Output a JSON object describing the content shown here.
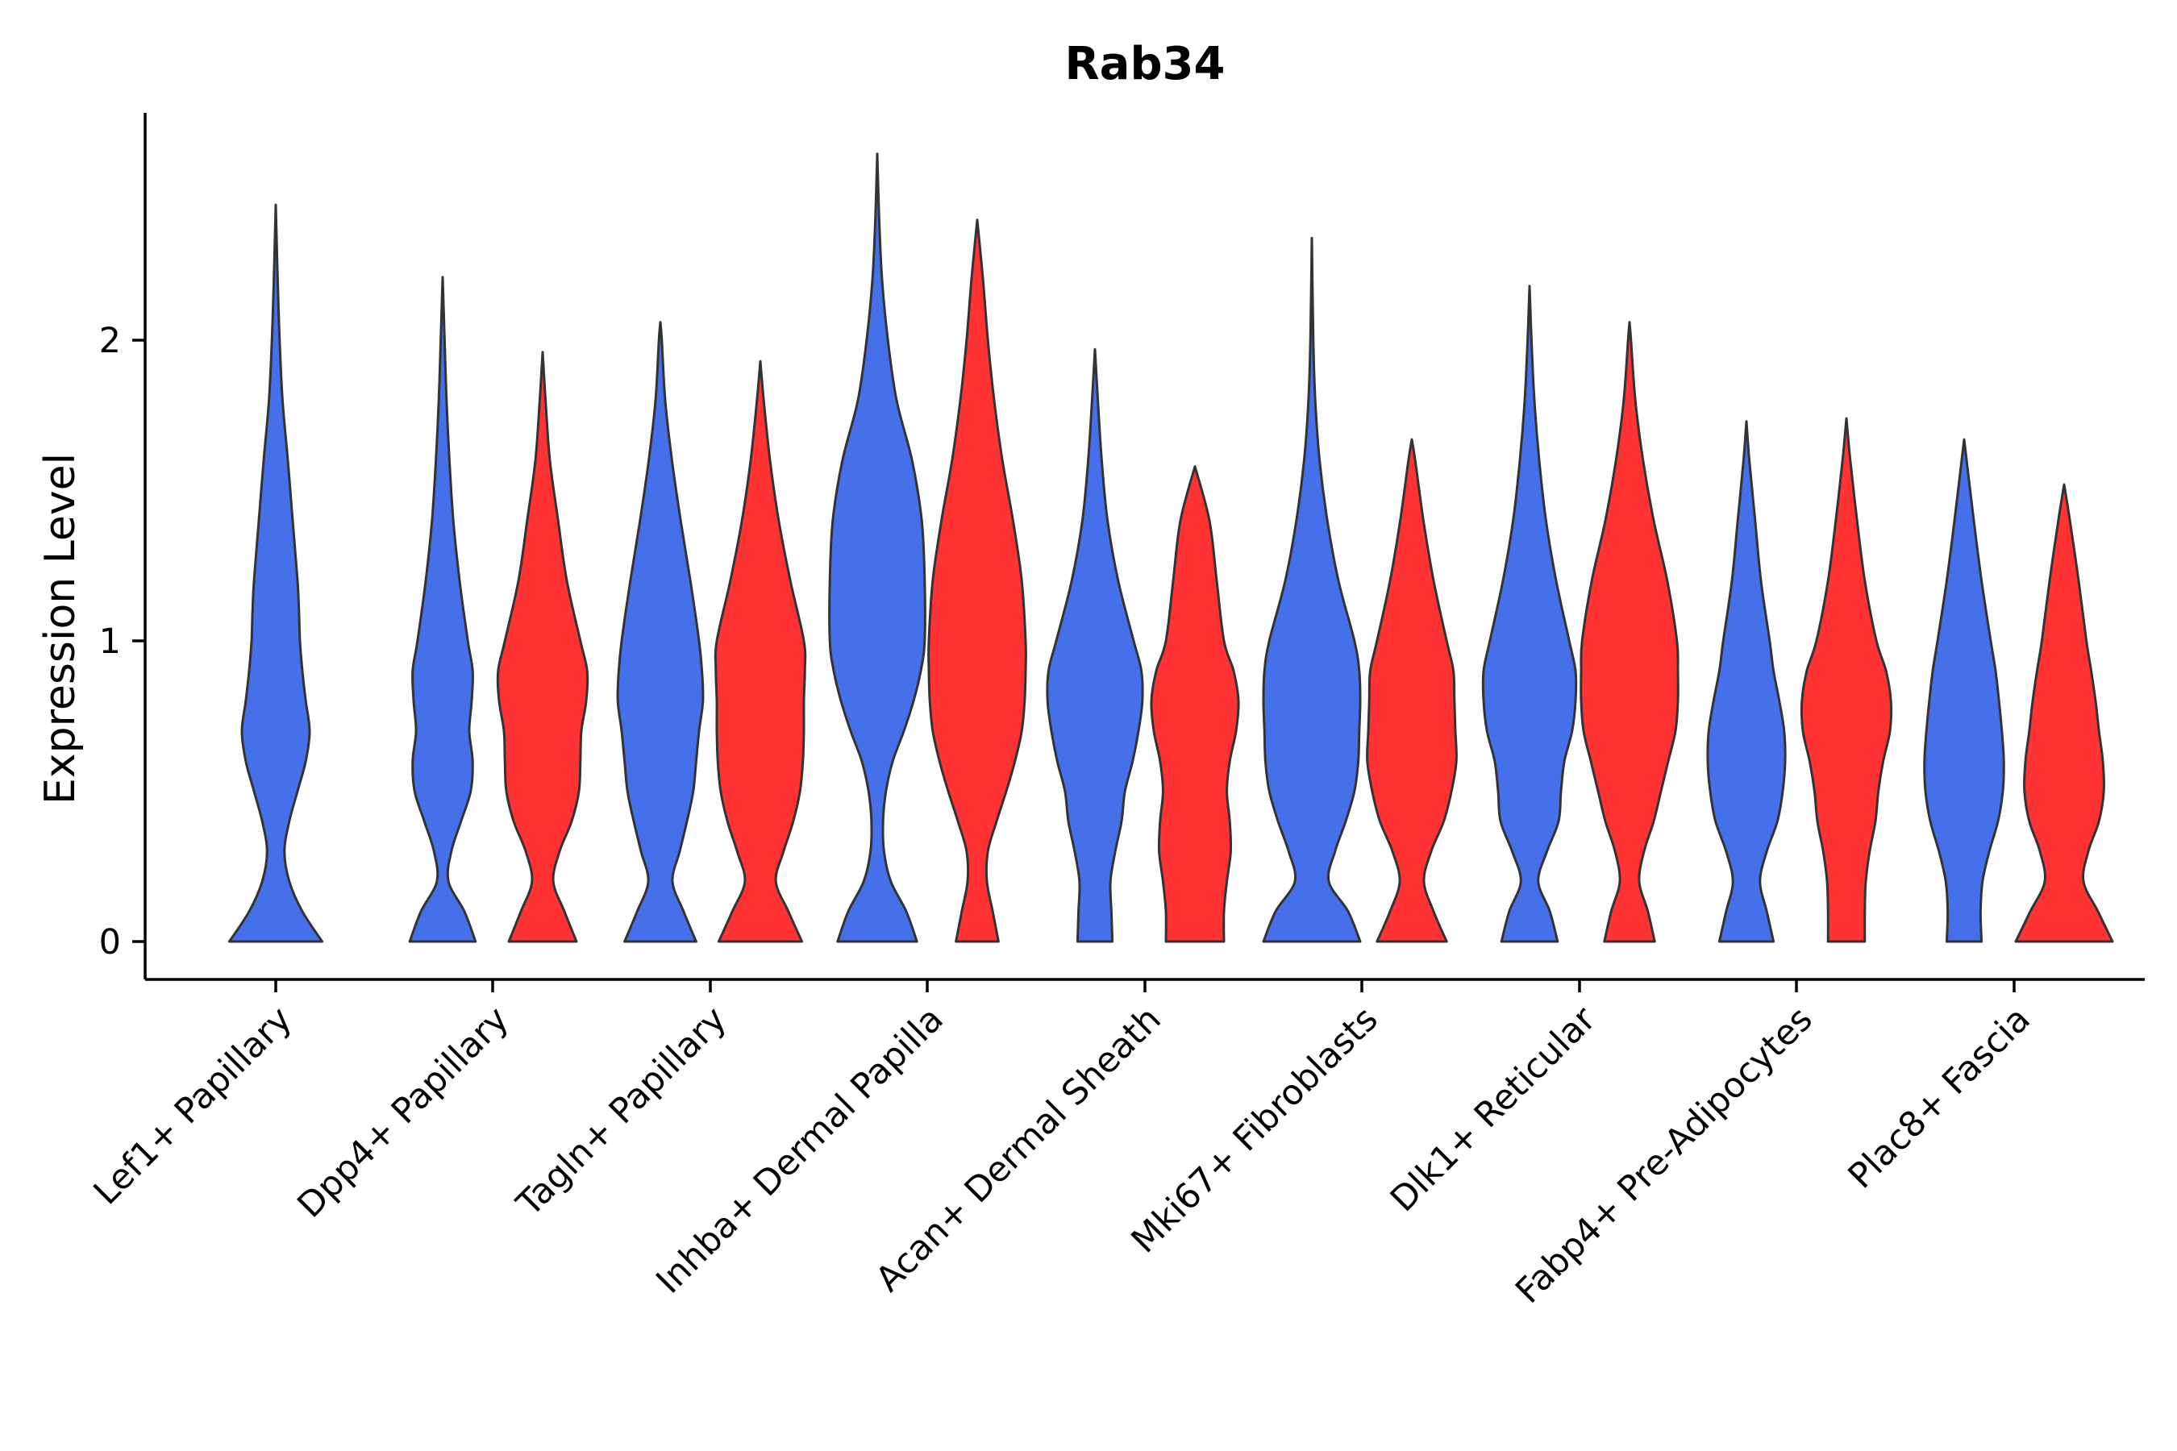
{
  "chart_data": {
    "type": "violin",
    "title": "Rab34",
    "xlabel": "",
    "ylabel": "Expression Level",
    "ylim": [
      -0.13,
      2.75
    ],
    "yticks": [
      0,
      1,
      2
    ],
    "grid": false,
    "legend": "none",
    "colors": {
      "group_a": "#4570EA",
      "group_b": "#FF3333",
      "outline": "#333333"
    },
    "categories": [
      "Lef1+ Papillary",
      "Dpp4+ Papillary",
      "Tagln+ Papillary",
      "Inhba+ Dermal Papilla",
      "Acan+ Dermal Sheath",
      "Mki67+ Fibroblasts",
      "Dlk1+ Reticular",
      "Fabp4+ Pre-Adipocytes",
      "Plac8+ Fascia"
    ],
    "violins": [
      {
        "category": "Lef1+ Papillary",
        "group": "a",
        "max": 2.45,
        "profile": [
          [
            0,
            0.96
          ],
          [
            0.1,
            0.55
          ],
          [
            0.2,
            0.28
          ],
          [
            0.3,
            0.18
          ],
          [
            0.4,
            0.28
          ],
          [
            0.5,
            0.45
          ],
          [
            0.6,
            0.62
          ],
          [
            0.7,
            0.7
          ],
          [
            0.8,
            0.62
          ],
          [
            0.9,
            0.55
          ],
          [
            1.0,
            0.5
          ],
          [
            1.1,
            0.48
          ],
          [
            1.2,
            0.45
          ],
          [
            1.4,
            0.35
          ],
          [
            1.6,
            0.25
          ],
          [
            1.8,
            0.14
          ],
          [
            2.0,
            0.08
          ],
          [
            2.2,
            0.04
          ],
          [
            2.45,
            0.0
          ]
        ]
      },
      {
        "category": "Dpp4+ Papillary",
        "group": "a",
        "max": 2.21,
        "profile": [
          [
            0,
            0.68
          ],
          [
            0.1,
            0.45
          ],
          [
            0.2,
            0.12
          ],
          [
            0.3,
            0.18
          ],
          [
            0.4,
            0.38
          ],
          [
            0.5,
            0.58
          ],
          [
            0.6,
            0.62
          ],
          [
            0.7,
            0.55
          ],
          [
            0.8,
            0.6
          ],
          [
            0.9,
            0.62
          ],
          [
            1.0,
            0.52
          ],
          [
            1.2,
            0.35
          ],
          [
            1.4,
            0.22
          ],
          [
            1.6,
            0.14
          ],
          [
            1.8,
            0.08
          ],
          [
            2.0,
            0.04
          ],
          [
            2.21,
            0.0
          ]
        ]
      },
      {
        "category": "Dpp4+ Papillary",
        "group": "b",
        "max": 1.96,
        "profile": [
          [
            0,
            0.7
          ],
          [
            0.1,
            0.45
          ],
          [
            0.2,
            0.22
          ],
          [
            0.3,
            0.35
          ],
          [
            0.4,
            0.6
          ],
          [
            0.5,
            0.75
          ],
          [
            0.6,
            0.78
          ],
          [
            0.7,
            0.8
          ],
          [
            0.8,
            0.9
          ],
          [
            0.9,
            0.92
          ],
          [
            1.0,
            0.78
          ],
          [
            1.2,
            0.5
          ],
          [
            1.4,
            0.32
          ],
          [
            1.6,
            0.15
          ],
          [
            1.8,
            0.06
          ],
          [
            1.96,
            0.0
          ]
        ]
      },
      {
        "category": "Tagln+ Papillary",
        "group": "a",
        "max": 2.06,
        "profile": [
          [
            0,
            0.74
          ],
          [
            0.1,
            0.48
          ],
          [
            0.2,
            0.25
          ],
          [
            0.3,
            0.4
          ],
          [
            0.4,
            0.55
          ],
          [
            0.5,
            0.68
          ],
          [
            0.6,
            0.74
          ],
          [
            0.7,
            0.8
          ],
          [
            0.8,
            0.88
          ],
          [
            0.9,
            0.86
          ],
          [
            1.0,
            0.8
          ],
          [
            1.2,
            0.62
          ],
          [
            1.4,
            0.42
          ],
          [
            1.6,
            0.24
          ],
          [
            1.8,
            0.1
          ],
          [
            2.0,
            0.03
          ],
          [
            2.06,
            0.0
          ]
        ]
      },
      {
        "category": "Tagln+ Papillary",
        "group": "b",
        "max": 1.93,
        "profile": [
          [
            0,
            0.86
          ],
          [
            0.1,
            0.58
          ],
          [
            0.2,
            0.32
          ],
          [
            0.3,
            0.48
          ],
          [
            0.4,
            0.68
          ],
          [
            0.5,
            0.82
          ],
          [
            0.6,
            0.88
          ],
          [
            0.7,
            0.9
          ],
          [
            0.8,
            0.9
          ],
          [
            0.9,
            0.92
          ],
          [
            1.0,
            0.9
          ],
          [
            1.2,
            0.62
          ],
          [
            1.4,
            0.38
          ],
          [
            1.6,
            0.2
          ],
          [
            1.8,
            0.07
          ],
          [
            1.93,
            0.0
          ]
        ]
      },
      {
        "category": "Inhba+ Dermal Papilla",
        "group": "a",
        "max": 2.62,
        "profile": [
          [
            0,
            0.82
          ],
          [
            0.1,
            0.6
          ],
          [
            0.2,
            0.28
          ],
          [
            0.3,
            0.14
          ],
          [
            0.4,
            0.12
          ],
          [
            0.5,
            0.18
          ],
          [
            0.6,
            0.32
          ],
          [
            0.7,
            0.55
          ],
          [
            0.8,
            0.75
          ],
          [
            0.9,
            0.9
          ],
          [
            1.0,
            0.98
          ],
          [
            1.2,
            0.98
          ],
          [
            1.4,
            0.92
          ],
          [
            1.6,
            0.72
          ],
          [
            1.8,
            0.4
          ],
          [
            2.0,
            0.22
          ],
          [
            2.2,
            0.1
          ],
          [
            2.4,
            0.04
          ],
          [
            2.62,
            0.0
          ]
        ]
      },
      {
        "category": "Inhba+ Dermal Papilla",
        "group": "b",
        "max": 2.4,
        "profile": [
          [
            0,
            0.44
          ],
          [
            0.1,
            0.32
          ],
          [
            0.2,
            0.2
          ],
          [
            0.3,
            0.22
          ],
          [
            0.4,
            0.4
          ],
          [
            0.5,
            0.6
          ],
          [
            0.6,
            0.78
          ],
          [
            0.7,
            0.92
          ],
          [
            0.8,
            0.98
          ],
          [
            0.9,
            1.0
          ],
          [
            1.0,
            1.0
          ],
          [
            1.2,
            0.92
          ],
          [
            1.4,
            0.74
          ],
          [
            1.6,
            0.52
          ],
          [
            1.8,
            0.35
          ],
          [
            2.0,
            0.22
          ],
          [
            2.2,
            0.12
          ],
          [
            2.4,
            0.0
          ]
        ]
      },
      {
        "category": "Acan+ Dermal Sheath",
        "group": "a",
        "max": 1.97,
        "profile": [
          [
            0,
            0.36
          ],
          [
            0.1,
            0.34
          ],
          [
            0.2,
            0.32
          ],
          [
            0.3,
            0.42
          ],
          [
            0.4,
            0.55
          ],
          [
            0.5,
            0.62
          ],
          [
            0.6,
            0.78
          ],
          [
            0.7,
            0.9
          ],
          [
            0.8,
            0.98
          ],
          [
            0.9,
            0.96
          ],
          [
            1.0,
            0.8
          ],
          [
            1.2,
            0.48
          ],
          [
            1.4,
            0.26
          ],
          [
            1.6,
            0.14
          ],
          [
            1.8,
            0.06
          ],
          [
            1.97,
            0.0
          ]
        ]
      },
      {
        "category": "Acan+ Dermal Sheath",
        "group": "b",
        "max": 1.58,
        "profile": [
          [
            0,
            0.6
          ],
          [
            0.1,
            0.6
          ],
          [
            0.2,
            0.66
          ],
          [
            0.3,
            0.74
          ],
          [
            0.4,
            0.72
          ],
          [
            0.5,
            0.66
          ],
          [
            0.6,
            0.72
          ],
          [
            0.7,
            0.85
          ],
          [
            0.8,
            0.9
          ],
          [
            0.9,
            0.8
          ],
          [
            1.0,
            0.6
          ],
          [
            1.2,
            0.45
          ],
          [
            1.4,
            0.3
          ],
          [
            1.58,
            0.0
          ]
        ]
      },
      {
        "category": "Mki67+ Fibroblasts",
        "group": "a",
        "max": 2.34,
        "profile": [
          [
            0,
            1.0
          ],
          [
            0.1,
            0.75
          ],
          [
            0.2,
            0.35
          ],
          [
            0.3,
            0.48
          ],
          [
            0.4,
            0.7
          ],
          [
            0.5,
            0.88
          ],
          [
            0.6,
            0.96
          ],
          [
            0.7,
            0.98
          ],
          [
            0.8,
            1.0
          ],
          [
            0.9,
            0.98
          ],
          [
            1.0,
            0.88
          ],
          [
            1.2,
            0.55
          ],
          [
            1.4,
            0.32
          ],
          [
            1.6,
            0.16
          ],
          [
            1.8,
            0.07
          ],
          [
            2.0,
            0.03
          ],
          [
            2.34,
            0.0
          ]
        ]
      },
      {
        "category": "Mki67+ Fibroblasts",
        "group": "b",
        "max": 1.67,
        "profile": [
          [
            0,
            0.72
          ],
          [
            0.1,
            0.45
          ],
          [
            0.2,
            0.25
          ],
          [
            0.3,
            0.4
          ],
          [
            0.4,
            0.66
          ],
          [
            0.5,
            0.82
          ],
          [
            0.6,
            0.92
          ],
          [
            0.7,
            0.9
          ],
          [
            0.8,
            0.88
          ],
          [
            0.9,
            0.86
          ],
          [
            1.0,
            0.72
          ],
          [
            1.2,
            0.45
          ],
          [
            1.4,
            0.24
          ],
          [
            1.6,
            0.07
          ],
          [
            1.67,
            0.0
          ]
        ]
      },
      {
        "category": "Dlk1+ Reticular",
        "group": "a",
        "max": 2.18,
        "profile": [
          [
            0,
            0.58
          ],
          [
            0.1,
            0.42
          ],
          [
            0.2,
            0.18
          ],
          [
            0.3,
            0.36
          ],
          [
            0.4,
            0.6
          ],
          [
            0.5,
            0.65
          ],
          [
            0.6,
            0.72
          ],
          [
            0.7,
            0.88
          ],
          [
            0.8,
            0.95
          ],
          [
            0.9,
            0.95
          ],
          [
            1.0,
            0.82
          ],
          [
            1.2,
            0.55
          ],
          [
            1.4,
            0.34
          ],
          [
            1.6,
            0.2
          ],
          [
            1.8,
            0.1
          ],
          [
            2.0,
            0.04
          ],
          [
            2.18,
            0.0
          ]
        ]
      },
      {
        "category": "Dlk1+ Reticular",
        "group": "b",
        "max": 2.06,
        "profile": [
          [
            0,
            0.52
          ],
          [
            0.1,
            0.38
          ],
          [
            0.2,
            0.2
          ],
          [
            0.3,
            0.3
          ],
          [
            0.4,
            0.5
          ],
          [
            0.5,
            0.65
          ],
          [
            0.6,
            0.8
          ],
          [
            0.7,
            0.95
          ],
          [
            0.8,
            1.0
          ],
          [
            0.9,
            1.0
          ],
          [
            1.0,
            0.98
          ],
          [
            1.2,
            0.78
          ],
          [
            1.4,
            0.5
          ],
          [
            1.6,
            0.28
          ],
          [
            1.8,
            0.12
          ],
          [
            2.0,
            0.03
          ],
          [
            2.06,
            0.0
          ]
        ]
      },
      {
        "category": "Fabp4+ Pre-Adipocytes",
        "group": "a",
        "max": 1.73,
        "profile": [
          [
            0,
            0.56
          ],
          [
            0.1,
            0.42
          ],
          [
            0.2,
            0.28
          ],
          [
            0.3,
            0.42
          ],
          [
            0.4,
            0.64
          ],
          [
            0.5,
            0.75
          ],
          [
            0.6,
            0.8
          ],
          [
            0.7,
            0.78
          ],
          [
            0.8,
            0.68
          ],
          [
            0.9,
            0.56
          ],
          [
            1.0,
            0.48
          ],
          [
            1.2,
            0.3
          ],
          [
            1.4,
            0.18
          ],
          [
            1.6,
            0.06
          ],
          [
            1.73,
            0.0
          ]
        ]
      },
      {
        "category": "Fabp4+ Pre-Adipocytes",
        "group": "b",
        "max": 1.74,
        "profile": [
          [
            0,
            0.38
          ],
          [
            0.1,
            0.38
          ],
          [
            0.2,
            0.4
          ],
          [
            0.3,
            0.48
          ],
          [
            0.4,
            0.6
          ],
          [
            0.5,
            0.66
          ],
          [
            0.6,
            0.76
          ],
          [
            0.7,
            0.9
          ],
          [
            0.8,
            0.92
          ],
          [
            0.9,
            0.82
          ],
          [
            1.0,
            0.62
          ],
          [
            1.2,
            0.38
          ],
          [
            1.4,
            0.22
          ],
          [
            1.6,
            0.08
          ],
          [
            1.74,
            0.0
          ]
        ]
      },
      {
        "category": "Plac8+ Fascia",
        "group": "a",
        "max": 1.67,
        "profile": [
          [
            0,
            0.36
          ],
          [
            0.1,
            0.34
          ],
          [
            0.2,
            0.38
          ],
          [
            0.3,
            0.52
          ],
          [
            0.4,
            0.7
          ],
          [
            0.5,
            0.8
          ],
          [
            0.6,
            0.82
          ],
          [
            0.7,
            0.78
          ],
          [
            0.8,
            0.72
          ],
          [
            0.9,
            0.65
          ],
          [
            1.0,
            0.55
          ],
          [
            1.2,
            0.36
          ],
          [
            1.4,
            0.2
          ],
          [
            1.67,
            0.0
          ]
        ]
      },
      {
        "category": "Plac8+ Fascia",
        "group": "b",
        "max": 1.52,
        "profile": [
          [
            0,
            1.0
          ],
          [
            0.1,
            0.7
          ],
          [
            0.2,
            0.4
          ],
          [
            0.3,
            0.5
          ],
          [
            0.4,
            0.72
          ],
          [
            0.5,
            0.82
          ],
          [
            0.6,
            0.8
          ],
          [
            0.7,
            0.72
          ],
          [
            0.8,
            0.65
          ],
          [
            0.9,
            0.56
          ],
          [
            1.0,
            0.46
          ],
          [
            1.2,
            0.3
          ],
          [
            1.4,
            0.12
          ],
          [
            1.52,
            0.0
          ]
        ]
      }
    ]
  }
}
